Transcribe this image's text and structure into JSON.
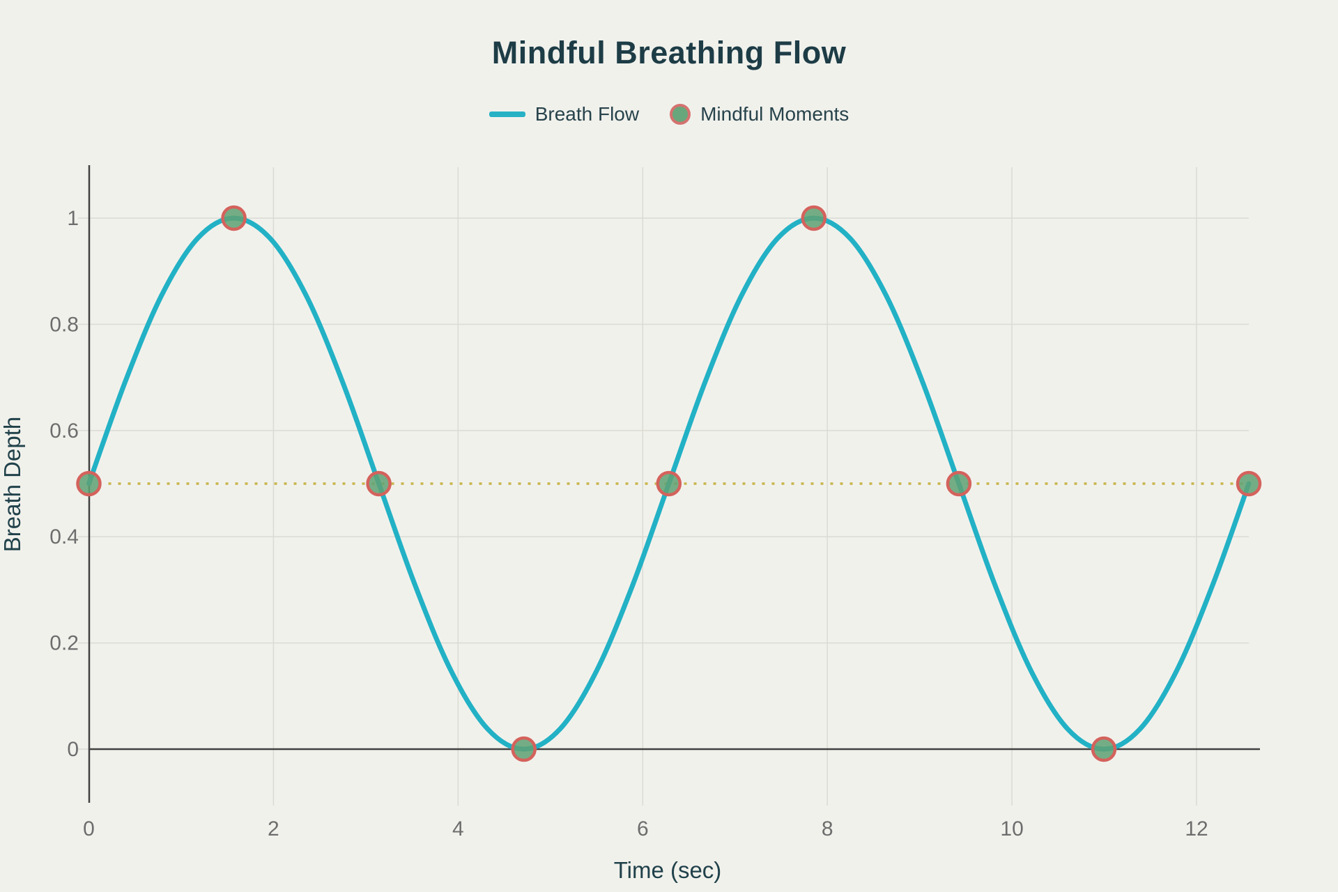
{
  "page": {
    "title": "Mindful Breathing Flow",
    "background": "#f1f1ec",
    "title_color": "#1d3c46"
  },
  "legend": {
    "items": [
      {
        "label": "Breath Flow",
        "swatch": "line-swatch",
        "color": "#27b1c5"
      },
      {
        "label": "Mindful Moments",
        "swatch": "circle-swatch",
        "fill": "#68a77b",
        "stroke": "#d4726f"
      }
    ]
  },
  "chart_data": {
    "type": "line",
    "title": "Mindful Breathing Flow",
    "xlabel": "Time (sec)",
    "ylabel": "Breath Depth",
    "xlim": [
      0,
      12.7
    ],
    "ylim": [
      0,
      1.1
    ],
    "grid": true,
    "legend_position": "top-center",
    "x_ticks": [
      0,
      2,
      4,
      6,
      8,
      10,
      12
    ],
    "x_tick_labels": [
      "0",
      "2",
      "4",
      "6",
      "8",
      "10",
      "12"
    ],
    "y_ticks": [
      0,
      0.2,
      0.4,
      0.6,
      0.8,
      1
    ],
    "y_tick_labels": [
      "0",
      "0.2",
      "0.4",
      "0.6",
      "0.8",
      "1"
    ],
    "series": [
      {
        "name": "Breath Flow",
        "type": "line",
        "color": "#22b1c5",
        "width": 7,
        "x": [
          0,
          0.3927,
          0.7854,
          1.1781,
          1.5708,
          1.9635,
          2.3562,
          2.7489,
          3.1416,
          3.5343,
          3.927,
          4.3197,
          4.7124,
          5.1051,
          5.4978,
          5.8905,
          6.2832,
          6.6759,
          7.0686,
          7.4613,
          7.854,
          8.2467,
          8.6394,
          9.0321,
          9.4248,
          9.8175,
          10.2102,
          10.6029,
          10.9956,
          11.3883,
          11.781,
          12.1737,
          12.5664
        ],
        "y": [
          0.5,
          0.6913,
          0.8536,
          0.9619,
          1,
          0.9619,
          0.8536,
          0.6913,
          0.5,
          0.3087,
          0.1464,
          0.0381,
          0,
          0.0381,
          0.1464,
          0.3087,
          0.5,
          0.6913,
          0.8536,
          0.9619,
          1,
          0.9619,
          0.8536,
          0.6913,
          0.5,
          0.3087,
          0.1464,
          0.0381,
          0,
          0.0381,
          0.1464,
          0.3087,
          0.5
        ]
      },
      {
        "name": "Mindful Moments",
        "type": "scatter",
        "marker_fill": "#5ea173",
        "marker_stroke": "#d4625c",
        "radius": 16,
        "x": [
          0,
          1.5708,
          3.1416,
          4.7124,
          6.2832,
          7.854,
          9.4248,
          10.9956,
          12.5664
        ],
        "y": [
          0.5,
          1,
          0.5,
          0,
          0.5,
          1,
          0.5,
          0,
          0.5
        ]
      }
    ],
    "reference_line": {
      "y": 0.5,
      "color": "#c8b54b",
      "style": "dotted",
      "x_start": 0,
      "x_end": 12.5664
    }
  }
}
